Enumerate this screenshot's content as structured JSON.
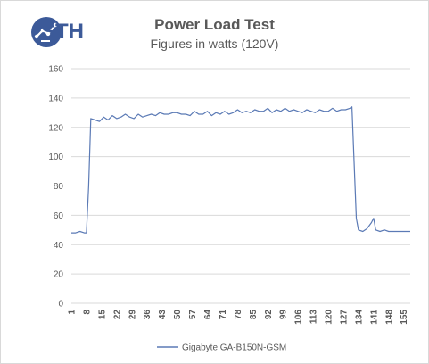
{
  "branding": {
    "logo_text": "STH",
    "logo_icon": "sth-circuit-logo-icon",
    "logo_color": "#3c5a99"
  },
  "chart_data": {
    "type": "line",
    "title": "Power Load Test",
    "subtitle": "Figures in watts (120V)",
    "xlabel": "",
    "ylabel": "",
    "ylim": [
      0,
      160
    ],
    "yticks": [
      0,
      20,
      40,
      60,
      80,
      100,
      120,
      140,
      160
    ],
    "xlim": [
      1,
      158
    ],
    "xticks": [
      1,
      8,
      15,
      22,
      29,
      36,
      43,
      50,
      57,
      64,
      71,
      78,
      85,
      92,
      99,
      106,
      113,
      120,
      127,
      134,
      141,
      148,
      155
    ],
    "grid": true,
    "legend_position": "bottom",
    "series": [
      {
        "name": "Gigabyte GA-B150N-GSM",
        "color": "#5b7ab5",
        "x": [
          1,
          3,
          5,
          7,
          8,
          9,
          10,
          12,
          14,
          16,
          18,
          20,
          22,
          24,
          26,
          28,
          30,
          32,
          34,
          36,
          38,
          40,
          42,
          44,
          46,
          48,
          50,
          52,
          54,
          56,
          58,
          60,
          62,
          64,
          66,
          68,
          70,
          72,
          74,
          76,
          78,
          80,
          82,
          84,
          86,
          88,
          90,
          92,
          94,
          96,
          98,
          100,
          102,
          104,
          106,
          108,
          110,
          112,
          114,
          116,
          118,
          120,
          122,
          124,
          126,
          128,
          130,
          131,
          132,
          133,
          134,
          136,
          138,
          140,
          141,
          142,
          144,
          146,
          148,
          150,
          152,
          154,
          156,
          158
        ],
        "y": [
          48,
          48,
          49,
          48,
          48,
          80,
          126,
          125,
          124,
          127,
          125,
          128,
          126,
          127,
          129,
          127,
          126,
          129,
          127,
          128,
          129,
          128,
          130,
          129,
          129,
          130,
          130,
          129,
          129,
          128,
          131,
          129,
          129,
          131,
          128,
          130,
          129,
          131,
          129,
          130,
          132,
          130,
          131,
          130,
          132,
          131,
          131,
          133,
          130,
          132,
          131,
          133,
          131,
          132,
          131,
          130,
          132,
          131,
          130,
          132,
          131,
          131,
          133,
          131,
          132,
          132,
          133,
          134,
          95,
          58,
          50,
          49,
          51,
          55,
          58,
          50,
          49,
          50,
          49,
          49,
          49,
          49,
          49,
          49
        ]
      }
    ]
  }
}
